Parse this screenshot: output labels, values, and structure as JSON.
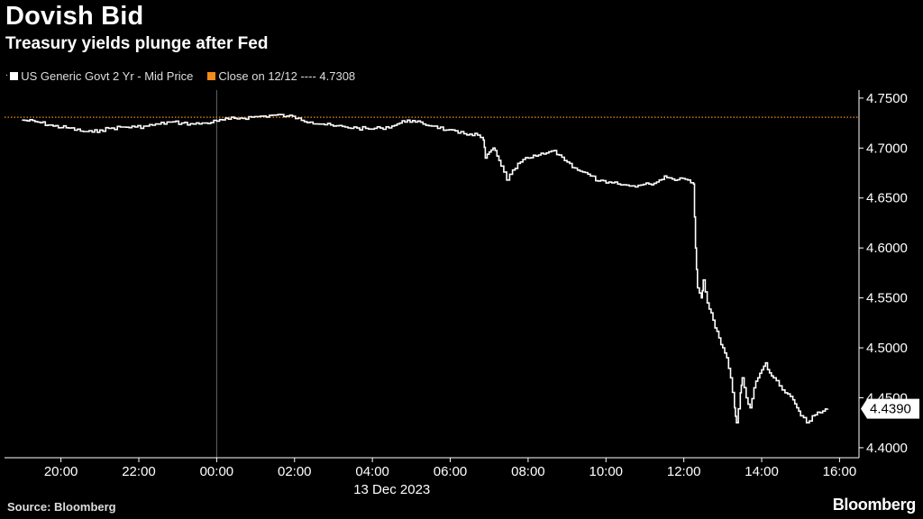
{
  "header": {
    "title": "Dovish Bid",
    "subtitle": "Treasury yields plunge after Fed"
  },
  "legend": {
    "series_label": "US Generic Govt 2 Yr - Mid Price",
    "close_label": "Close on 12/12 ---- 4.7308",
    "series_color": "#ffffff",
    "close_color": "#f28c1a"
  },
  "footer": {
    "source": "Source: Bloomberg",
    "brand": "Bloomberg"
  },
  "chart_data": {
    "type": "line",
    "x_unit": "hours since 19:00 on 12 Dec 2023",
    "date_label": "13 Dec 2023",
    "xlim": [
      -0.45,
      21.5
    ],
    "ylim": [
      4.39,
      4.758
    ],
    "x_ticks": [
      "20:00",
      "22:00",
      "00:00",
      "02:00",
      "04:00",
      "06:00",
      "08:00",
      "10:00",
      "12:00",
      "14:00",
      "16:00"
    ],
    "y_ticks": [
      "4.7500",
      "4.7000",
      "4.6500",
      "4.6000",
      "4.5500",
      "4.5000",
      "4.4500",
      "4.4000"
    ],
    "y_tick_values": [
      4.75,
      4.7,
      4.65,
      4.6,
      4.55,
      4.5,
      4.45,
      4.4
    ],
    "reference_line": {
      "label": "Close on 12/12",
      "value": 4.7308
    },
    "last_value": {
      "label": "4.4390",
      "value": 4.439
    },
    "series": [
      {
        "name": "US Generic Govt 2 Yr - Mid Price",
        "points": [
          [
            0.0,
            4.728
          ],
          [
            0.4,
            4.726
          ],
          [
            0.8,
            4.722
          ],
          [
            1.2,
            4.72
          ],
          [
            1.5,
            4.717
          ],
          [
            1.8,
            4.716
          ],
          [
            2.0,
            4.718
          ],
          [
            2.3,
            4.72
          ],
          [
            2.6,
            4.721
          ],
          [
            2.9,
            4.721
          ],
          [
            3.2,
            4.722
          ],
          [
            3.5,
            4.724
          ],
          [
            3.8,
            4.726
          ],
          [
            4.1,
            4.725
          ],
          [
            4.4,
            4.724
          ],
          [
            4.7,
            4.725
          ],
          [
            5.0,
            4.727
          ],
          [
            5.3,
            4.729
          ],
          [
            5.6,
            4.73
          ],
          [
            5.9,
            4.731
          ],
          [
            6.2,
            4.732
          ],
          [
            6.5,
            4.733
          ],
          [
            6.8,
            4.732
          ],
          [
            7.1,
            4.73
          ],
          [
            7.4,
            4.726
          ],
          [
            7.7,
            4.724
          ],
          [
            8.0,
            4.722
          ],
          [
            8.3,
            4.721
          ],
          [
            8.6,
            4.72
          ],
          [
            8.9,
            4.719
          ],
          [
            9.2,
            4.72
          ],
          [
            9.5,
            4.722
          ],
          [
            9.7,
            4.725
          ],
          [
            9.9,
            4.728
          ],
          [
            10.1,
            4.726
          ],
          [
            10.3,
            4.724
          ],
          [
            10.6,
            4.722
          ],
          [
            10.9,
            4.718
          ],
          [
            11.2,
            4.715
          ],
          [
            11.5,
            4.714
          ],
          [
            11.7,
            4.713
          ],
          [
            11.85,
            4.708
          ],
          [
            11.9,
            4.69
          ],
          [
            12.0,
            4.696
          ],
          [
            12.1,
            4.7
          ],
          [
            12.2,
            4.692
          ],
          [
            12.3,
            4.682
          ],
          [
            12.45,
            4.668
          ],
          [
            12.6,
            4.678
          ],
          [
            12.8,
            4.686
          ],
          [
            13.0,
            4.69
          ],
          [
            13.2,
            4.692
          ],
          [
            13.4,
            4.694
          ],
          [
            13.6,
            4.697
          ],
          [
            13.8,
            4.693
          ],
          [
            14.0,
            4.686
          ],
          [
            14.2,
            4.68
          ],
          [
            14.4,
            4.676
          ],
          [
            14.6,
            4.672
          ],
          [
            14.8,
            4.667
          ],
          [
            15.0,
            4.665
          ],
          [
            15.3,
            4.664
          ],
          [
            15.6,
            4.662
          ],
          [
            15.9,
            4.663
          ],
          [
            16.1,
            4.664
          ],
          [
            16.3,
            4.666
          ],
          [
            16.5,
            4.672
          ],
          [
            16.7,
            4.669
          ],
          [
            16.9,
            4.67
          ],
          [
            17.1,
            4.668
          ],
          [
            17.25,
            4.664
          ],
          [
            17.3,
            4.6
          ],
          [
            17.35,
            4.56
          ],
          [
            17.45,
            4.55
          ],
          [
            17.5,
            4.568
          ],
          [
            17.6,
            4.545
          ],
          [
            17.7,
            4.535
          ],
          [
            17.8,
            4.52
          ],
          [
            17.9,
            4.51
          ],
          [
            18.0,
            4.5
          ],
          [
            18.1,
            4.49
          ],
          [
            18.2,
            4.47
          ],
          [
            18.3,
            4.44
          ],
          [
            18.35,
            4.425
          ],
          [
            18.45,
            4.455
          ],
          [
            18.5,
            4.47
          ],
          [
            18.6,
            4.45
          ],
          [
            18.7,
            4.44
          ],
          [
            18.8,
            4.46
          ],
          [
            18.9,
            4.47
          ],
          [
            19.0,
            4.478
          ],
          [
            19.1,
            4.485
          ],
          [
            19.2,
            4.475
          ],
          [
            19.3,
            4.47
          ],
          [
            19.45,
            4.462
          ],
          [
            19.6,
            4.455
          ],
          [
            19.8,
            4.448
          ],
          [
            19.9,
            4.44
          ],
          [
            20.0,
            4.432
          ],
          [
            20.15,
            4.425
          ],
          [
            20.3,
            4.432
          ],
          [
            20.5,
            4.435
          ],
          [
            20.7,
            4.439
          ]
        ]
      }
    ]
  }
}
